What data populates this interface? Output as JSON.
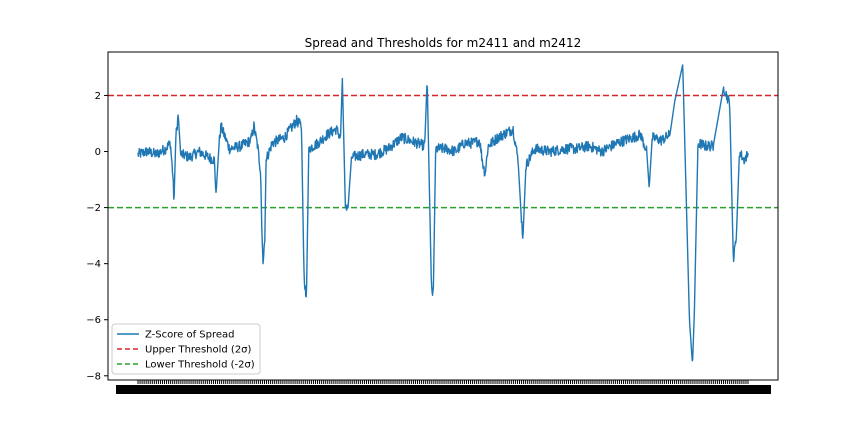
{
  "chart_data": {
    "type": "line",
    "title": "Spread and Thresholds for m2411 and m2412",
    "xlabel": "",
    "ylabel": "",
    "ylim": [
      -8.15,
      3.55
    ],
    "yticks": [
      2,
      0,
      -2,
      -4,
      -6,
      -8
    ],
    "ytick_labels": [
      "2",
      "0",
      "−2",
      "−4",
      "−6",
      "−8"
    ],
    "grid": false,
    "legend": {
      "position": "lower-left",
      "entries": [
        {
          "label": "Z-Score of Spread",
          "color": "#1f77b4",
          "style": "solid"
        },
        {
          "label": "Upper Threshold (2σ)",
          "color": "#d62728",
          "style": "dashed"
        },
        {
          "label": "Lower Threshold (-2σ)",
          "color": "#2ca02c",
          "style": "dashed"
        }
      ]
    },
    "thresholds": [
      {
        "name": "Upper Threshold (2σ)",
        "value": 2,
        "color": "#d62728"
      },
      {
        "name": "Lower Threshold (-2σ)",
        "value": -2,
        "color": "#2ca02c"
      }
    ],
    "series": [
      {
        "name": "Z-Score of Spread",
        "color": "#1f77b4",
        "x_range": [
          0,
          100
        ],
        "shape_keypoints": [
          [
            0,
            -0.1
          ],
          [
            1.5,
            0.0
          ],
          [
            3,
            -0.1
          ],
          [
            4.5,
            0.1
          ],
          [
            5.3,
            0.3
          ],
          [
            5.7,
            -0.8
          ],
          [
            5.9,
            -1.8
          ],
          [
            6.2,
            0.5
          ],
          [
            6.6,
            1.3
          ],
          [
            7.0,
            -0.1
          ],
          [
            8.5,
            -0.2
          ],
          [
            10.0,
            0.0
          ],
          [
            11.5,
            -0.2
          ],
          [
            12.5,
            -0.3
          ],
          [
            12.8,
            -1.5
          ],
          [
            13.3,
            0.3
          ],
          [
            13.6,
            0.9
          ],
          [
            15,
            0.1
          ],
          [
            17,
            0.2
          ],
          [
            18.5,
            0.4
          ],
          [
            19.0,
            0.9
          ],
          [
            19.6,
            0.2
          ],
          [
            20.1,
            -0.7
          ],
          [
            20.3,
            -2.8
          ],
          [
            20.5,
            -4.0
          ],
          [
            20.8,
            -3.0
          ],
          [
            21.0,
            -0.3
          ],
          [
            22.0,
            0.3
          ],
          [
            24.0,
            0.5
          ],
          [
            26.0,
            1.1
          ],
          [
            26.8,
            0.9
          ],
          [
            27.2,
            -4.3
          ],
          [
            27.6,
            -5.4
          ],
          [
            28.0,
            0.1
          ],
          [
            29.5,
            0.3
          ],
          [
            31.0,
            0.6
          ],
          [
            32.5,
            0.8
          ],
          [
            33.2,
            0.5
          ],
          [
            33.5,
            2.6
          ],
          [
            34.0,
            -2.0
          ],
          [
            34.4,
            -2.1
          ],
          [
            35.0,
            -0.2
          ],
          [
            37,
            -0.1
          ],
          [
            39,
            -0.1
          ],
          [
            41,
            0.1
          ],
          [
            43.2,
            0.5
          ],
          [
            47.0,
            0.2
          ],
          [
            47.4,
            2.6
          ],
          [
            48.1,
            -4.8
          ],
          [
            48.4,
            -5.2
          ],
          [
            48.8,
            0.1
          ],
          [
            50.5,
            0.1
          ],
          [
            52.0,
            0.0
          ],
          [
            53.5,
            0.3
          ],
          [
            55.0,
            0.3
          ],
          [
            56.0,
            0.4
          ],
          [
            56.5,
            -0.4
          ],
          [
            56.9,
            -0.8
          ],
          [
            57.4,
            0.2
          ],
          [
            59.0,
            0.5
          ],
          [
            61.5,
            0.8
          ],
          [
            62.3,
            -0.3
          ],
          [
            62.8,
            -2.2
          ],
          [
            63.1,
            -3.1
          ],
          [
            63.6,
            -0.5
          ],
          [
            65.0,
            0.1
          ],
          [
            67.5,
            0.0
          ],
          [
            70.0,
            0.1
          ],
          [
            72.0,
            0.1
          ],
          [
            74.0,
            0.2
          ],
          [
            76.0,
            0.0
          ],
          [
            78.5,
            0.3
          ],
          [
            82.4,
            0.6
          ],
          [
            83.4,
            0.0
          ],
          [
            83.8,
            -1.3
          ],
          [
            84.3,
            0.5
          ],
          [
            85.8,
            0.4
          ],
          [
            87.2,
            0.6
          ],
          [
            88.0,
            1.8
          ],
          [
            89.3,
            3.1
          ],
          [
            90.4,
            -6.0
          ],
          [
            90.9,
            -7.6
          ],
          [
            91.2,
            -5.8
          ],
          [
            91.8,
            0.3
          ],
          [
            93,
            0.2
          ],
          [
            94.3,
            0.2
          ],
          [
            96.0,
            2.3
          ],
          [
            97.0,
            1.7
          ],
          [
            97.6,
            -3.9
          ],
          [
            98.1,
            -3.0
          ],
          [
            98.6,
            0.0
          ],
          [
            99.3,
            -0.3
          ],
          [
            100,
            -0.1
          ]
        ]
      }
    ]
  }
}
